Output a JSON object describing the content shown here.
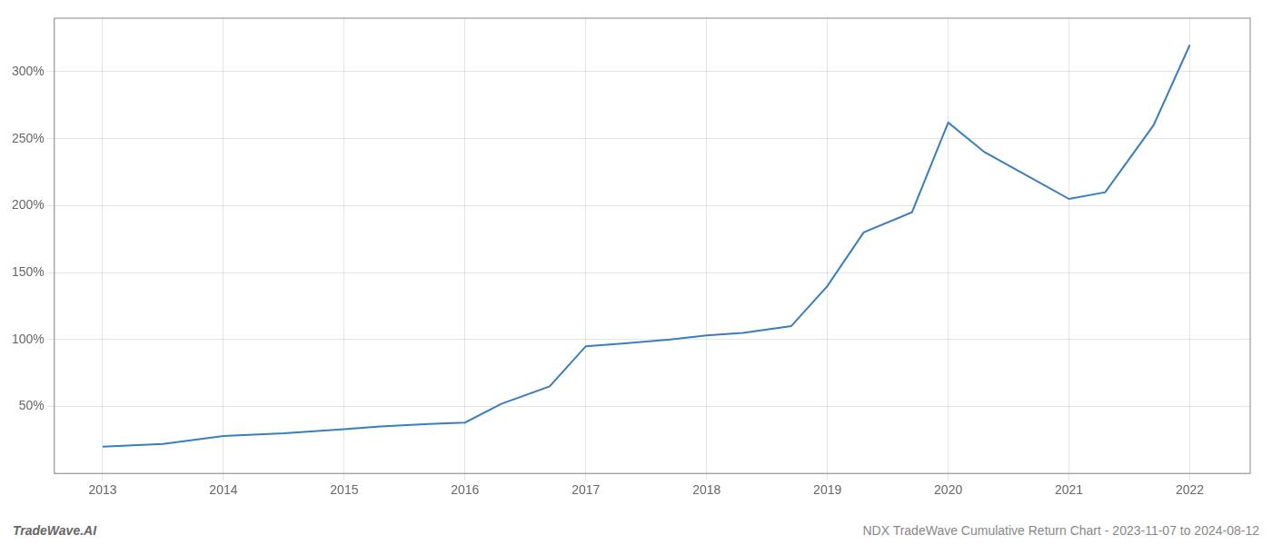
{
  "chart_data": {
    "type": "line",
    "x": [
      2013,
      2013.5,
      2014,
      2014.5,
      2015,
      2015.3,
      2015.7,
      2016,
      2016.3,
      2016.7,
      2017,
      2017.3,
      2017.7,
      2018,
      2018.3,
      2018.7,
      2019,
      2019.3,
      2019.7,
      2020,
      2020.3,
      2020.7,
      2021,
      2021.3,
      2021.7,
      2022
    ],
    "values": [
      20,
      22,
      28,
      30,
      33,
      35,
      37,
      38,
      52,
      65,
      95,
      97,
      100,
      103,
      105,
      110,
      140,
      180,
      195,
      262,
      240,
      220,
      205,
      210,
      260,
      320
    ],
    "color": "#3a7ebf",
    "xlim": [
      2012.6,
      2022.5
    ],
    "xticks": [
      2013,
      2014,
      2015,
      2016,
      2017,
      2018,
      2019,
      2020,
      2021,
      2022
    ],
    "ylim": [
      0,
      340
    ],
    "yticks": [
      {
        "value": 50,
        "label": "50%"
      },
      {
        "value": 100,
        "label": "100%"
      },
      {
        "value": 150,
        "label": "150%"
      },
      {
        "value": 200,
        "label": "200%"
      },
      {
        "value": 250,
        "label": "250%"
      },
      {
        "value": 300,
        "label": "300%"
      }
    ],
    "grid": true,
    "annotations": [
      "TradeWave.AI",
      "NDX TradeWave Cumulative Return Chart - 2023-11-07 to 2024-08-12"
    ]
  }
}
